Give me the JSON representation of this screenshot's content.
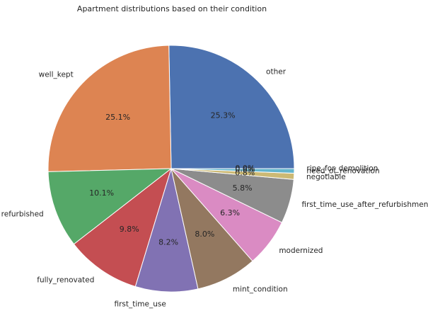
{
  "chart_data": {
    "type": "pie",
    "title": "Apartment distributions based on their condition",
    "categories": [
      "other",
      "well_kept",
      "refurbished",
      "fully_renovated",
      "first_time_use",
      "mint_condition",
      "modernized",
      "first_time_use_after_refurbishment",
      "negotiable",
      "need_of_renovation",
      "ripe_for_demolition"
    ],
    "values": [
      25.3,
      25.1,
      10.1,
      9.8,
      8.2,
      8.0,
      6.3,
      5.8,
      0.8,
      0.6,
      0.0
    ],
    "pct_labels": [
      "25.3%",
      "25.1%",
      "10.1%",
      "9.8%",
      "8.2%",
      "8.0%",
      "6.3%",
      "5.8%",
      "0.8%",
      "0.6%",
      "0.0%"
    ],
    "colors": [
      "#4c72b0",
      "#dd8452",
      "#55a868",
      "#c44e52",
      "#8172b3",
      "#937860",
      "#da8bc3",
      "#8c8c8c",
      "#ccb974",
      "#64b5cd",
      "#4c72b0"
    ],
    "start_angle_deg": 0,
    "direction": "counterclockwise",
    "legend": "none"
  }
}
